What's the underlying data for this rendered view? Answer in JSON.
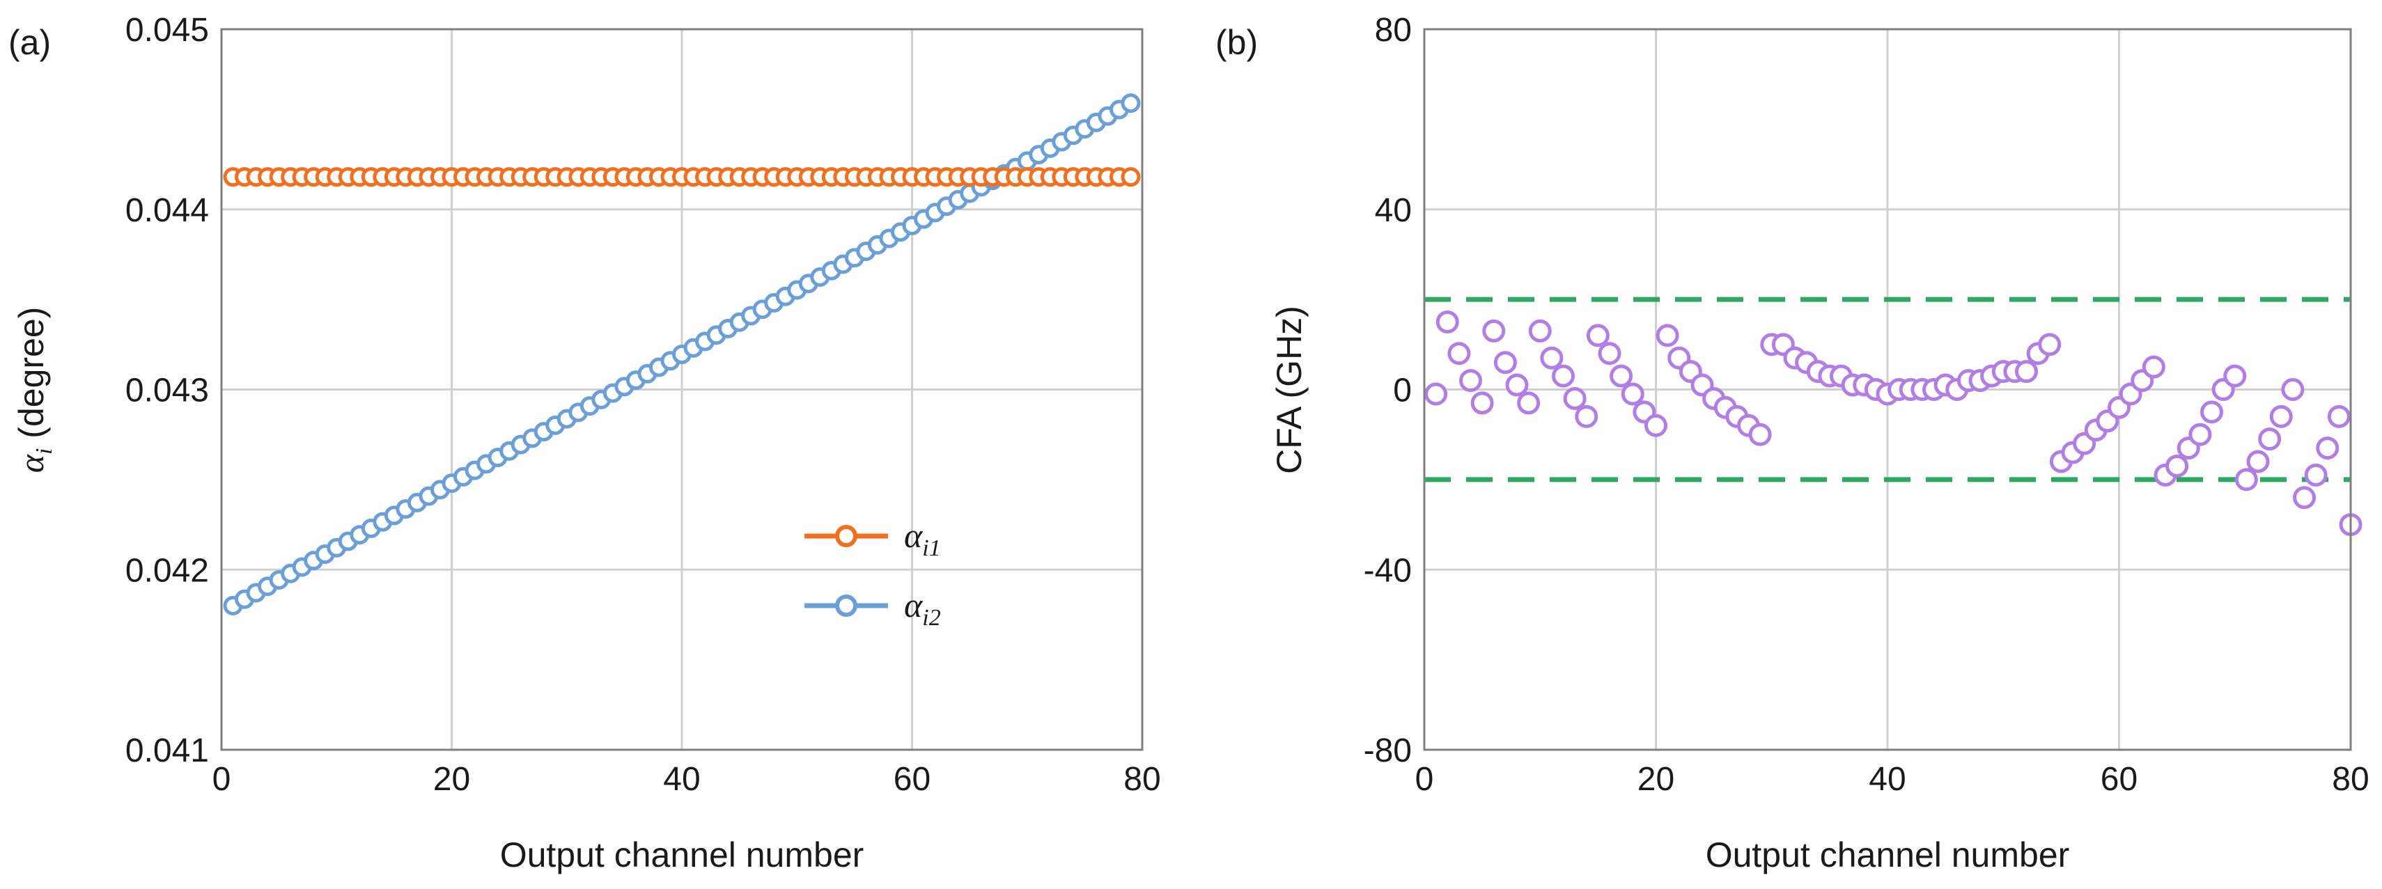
{
  "chart_data": [
    {
      "type": "scatter",
      "panel_label": "(a)",
      "xlabel": "Output channel number",
      "ylabel_main": "α",
      "ylabel_sub": "i",
      "ylabel_rest": " (degree)",
      "xlim": [
        0,
        80
      ],
      "ylim": [
        0.041,
        0.045
      ],
      "xticks": [
        "0",
        "20",
        "40",
        "60",
        "80"
      ],
      "yticks": [
        "0.041",
        "0.042",
        "0.043",
        "0.044",
        "0.045"
      ],
      "grid": true,
      "legend_position": "lower-right",
      "series": [
        {
          "name_main": "α",
          "name_sub": "i1",
          "color": "#f07020",
          "x_start": 1,
          "x_end": 79,
          "y_start": 0.04418,
          "y_end": 0.04418
        },
        {
          "name_main": "α",
          "name_sub": "i2",
          "color": "#6a9fd8",
          "x_start": 1,
          "x_end": 79,
          "y_start": 0.0418,
          "y_end": 0.04459
        }
      ]
    },
    {
      "type": "scatter",
      "panel_label": "(b)",
      "xlabel": "Output channel number",
      "ylabel": "CFA (GHz)",
      "xlim": [
        0,
        80
      ],
      "ylim": [
        -80,
        80
      ],
      "xticks": [
        "0",
        "20",
        "40",
        "60",
        "80"
      ],
      "yticks": [
        "-80",
        "-40",
        "0",
        "40",
        "80"
      ],
      "grid": true,
      "point_color": "#b27ee6",
      "reference_lines": {
        "values": [
          20,
          -20
        ],
        "color": "#2ea860"
      },
      "x": [
        1,
        2,
        3,
        4,
        5,
        6,
        7,
        8,
        9,
        10,
        11,
        12,
        13,
        14,
        15,
        16,
        17,
        18,
        19,
        20,
        21,
        22,
        23,
        24,
        25,
        26,
        27,
        28,
        29,
        30,
        31,
        32,
        33,
        34,
        35,
        36,
        37,
        38,
        39,
        40,
        41,
        42,
        43,
        44,
        45,
        46,
        47,
        48,
        49,
        50,
        51,
        52,
        53,
        54,
        55,
        56,
        57,
        58,
        59,
        60,
        61,
        62,
        63,
        64,
        65,
        66,
        67,
        68,
        69,
        70,
        71,
        72,
        73,
        74,
        75,
        76,
        77,
        78,
        79,
        80
      ],
      "y": [
        -1,
        15,
        8,
        2,
        -3,
        13,
        6,
        1,
        -3,
        13,
        7,
        3,
        -2,
        -6,
        12,
        8,
        3,
        -1,
        -5,
        -8,
        12,
        7,
        4,
        1,
        -2,
        -4,
        -6,
        -8,
        -10,
        10,
        10,
        7,
        6,
        4,
        3,
        3,
        1,
        1,
        0,
        -1,
        0,
        0,
        0,
        0,
        1,
        0,
        2,
        2,
        3,
        4,
        4,
        4,
        8,
        10,
        -16,
        -14,
        -12,
        -9,
        -7,
        -4,
        -1,
        2,
        5,
        -19,
        -17,
        -13,
        -10,
        -5,
        0,
        3,
        -20,
        -16,
        -11,
        -6,
        0,
        -24,
        -19,
        -13,
        -6,
        -30
      ]
    }
  ]
}
